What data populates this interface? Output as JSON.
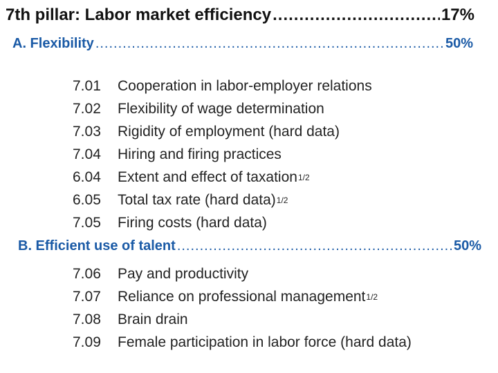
{
  "pillar": {
    "title": "7th pillar: Labor market efficiency",
    "percent": "17%"
  },
  "sections": [
    {
      "title": "A. Flexibility",
      "percent": "50%",
      "items": [
        {
          "code": "7.01",
          "text": "Cooperation in labor-employer relations",
          "note": ""
        },
        {
          "code": "7.02",
          "text": "Flexibility of wage determination",
          "note": ""
        },
        {
          "code": "7.03",
          "text": "Rigidity of employment (hard data)",
          "note": ""
        },
        {
          "code": "7.04",
          "text": "Hiring and firing practices",
          "note": ""
        },
        {
          "code": "6.04",
          "text": "Extent and effect of taxation",
          "note": "1/2"
        },
        {
          "code": "6.05",
          "text": "Total tax rate (hard data)",
          "note": "1/2"
        },
        {
          "code": "7.05",
          "text": "Firing costs (hard data)",
          "note": ""
        }
      ]
    },
    {
      "title": "B. Efficient use of talent",
      "percent": "50%",
      "items": [
        {
          "code": "7.06",
          "text": "Pay and productivity",
          "note": ""
        },
        {
          "code": "7.07",
          "text": "Reliance on professional management",
          "note": "1/2"
        },
        {
          "code": "7.08",
          "text": "Brain drain",
          "note": ""
        },
        {
          "code": "7.09",
          "text": "Female participation in labor force (hard data)",
          "note": ""
        }
      ]
    }
  ],
  "colors": {
    "section_heading": "#1a5aa6",
    "body_text": "#222222"
  }
}
